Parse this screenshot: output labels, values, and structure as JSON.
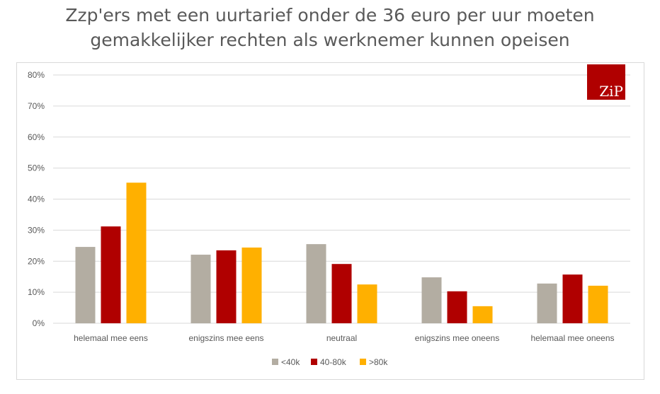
{
  "chart_data": {
    "type": "bar",
    "title": "Zzp'ers met een uurtarief onder de 36 euro per uur moeten gemakkelijker rechten als werknemer kunnen opeisen",
    "title_lines": [
      "Zzp'ers met een uurtarief onder de 36 euro per uur moeten",
      "gemakkelijker rechten als werknemer kunnen opeisen"
    ],
    "categories": [
      "helemaal mee eens",
      "enigszins mee eens",
      "neutraal",
      "enigszins mee oneens",
      "helemaal mee oneens"
    ],
    "series": [
      {
        "name": "<40k",
        "color": "#b3ada2",
        "values": [
          24.6,
          22.1,
          25.5,
          14.8,
          12.8
        ]
      },
      {
        "name": "40-80k",
        "color": "#b00000",
        "values": [
          31.2,
          23.5,
          19.1,
          10.3,
          15.7
        ]
      },
      {
        "name": ">80k",
        "color": "#ffb000",
        "values": [
          45.3,
          24.4,
          12.5,
          5.5,
          12.1
        ]
      }
    ],
    "ylim": [
      0,
      80
    ],
    "yticks": [
      "0%",
      "10%",
      "20%",
      "30%",
      "40%",
      "50%",
      "60%",
      "70%",
      "80%"
    ],
    "grid": true,
    "legend": "bottom",
    "xlabel": "",
    "ylabel": ""
  },
  "logo": {
    "text": "ZiP"
  }
}
